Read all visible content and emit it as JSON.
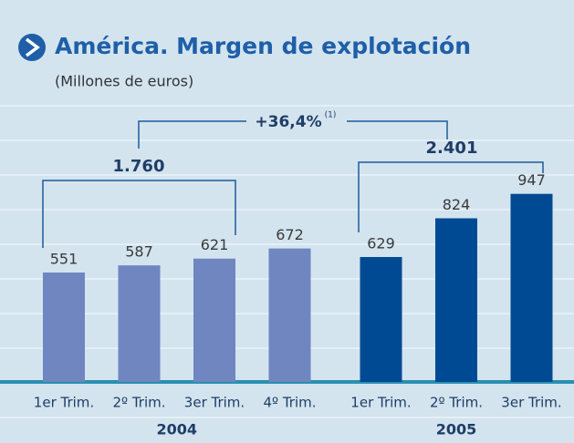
{
  "chart_data": {
    "type": "bar",
    "title": "América. Margen de explotación",
    "subtitle": "(Millones de euros)",
    "series": [
      {
        "name": "2004",
        "color": "#6f86c1",
        "categories": [
          "1er Trim.",
          "2º Trim.",
          "3er Trim.",
          "4º Trim."
        ],
        "values": [
          551,
          587,
          621,
          672
        ]
      },
      {
        "name": "2005",
        "color": "#004a93",
        "categories": [
          "1er Trim.",
          "2º Trim.",
          "3er Trim."
        ],
        "values": [
          629,
          824,
          947
        ]
      }
    ],
    "ylim": [
      0,
      1400
    ],
    "annotations": {
      "total_2004": "1.760",
      "total_2005": "2.401",
      "growth": "+36,4%",
      "growth_note": "(1)"
    }
  }
}
